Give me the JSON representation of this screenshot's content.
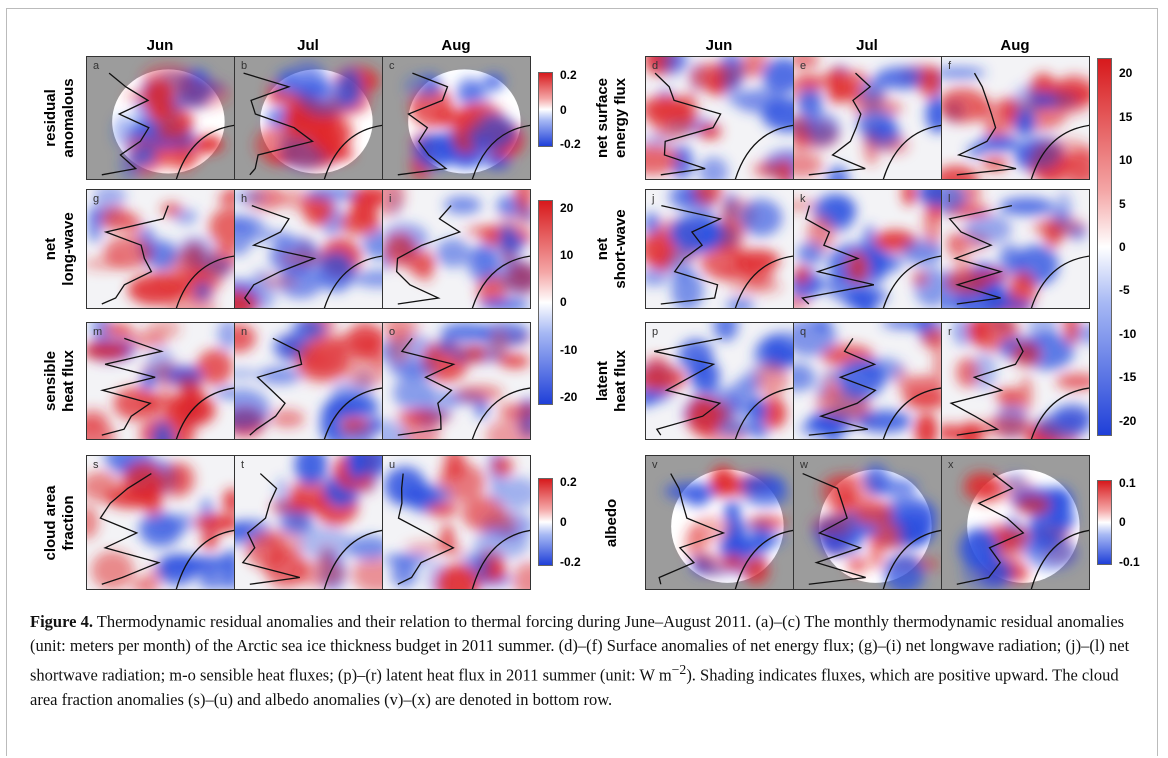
{
  "left": {
    "columns": [
      "Jun",
      "Jul",
      "Aug"
    ],
    "rows": [
      {
        "label_lines": [
          "residual",
          "anomalous"
        ],
        "panels": [
          "a",
          "b",
          "c"
        ]
      },
      {
        "label_lines": [
          "net",
          "long-wave"
        ],
        "panels": [
          "g",
          "h",
          "i"
        ]
      },
      {
        "label_lines": [
          "sensible",
          "heat flux"
        ],
        "panels": [
          "m",
          "n",
          "o"
        ]
      },
      {
        "label_lines": [
          "cloud area",
          "fraction"
        ],
        "panels": [
          "s",
          "t",
          "u"
        ]
      }
    ],
    "colorbars": [
      {
        "ticks": [
          "0.2",
          "0",
          "-0.2"
        ]
      },
      {
        "ticks": [
          "20",
          "10",
          "0",
          "-10",
          "-20"
        ]
      },
      {
        "ticks": [
          "0.2",
          "0",
          "-0.2"
        ]
      }
    ]
  },
  "right": {
    "columns": [
      "Jun",
      "Jul",
      "Aug"
    ],
    "rows": [
      {
        "label_lines": [
          "net surface",
          "energy flux"
        ],
        "panels": [
          "d",
          "e",
          "f"
        ]
      },
      {
        "label_lines": [
          "net",
          "short-wave"
        ],
        "panels": [
          "j",
          "k",
          "l"
        ]
      },
      {
        "label_lines": [
          "latent",
          "heat flux"
        ],
        "panels": [
          "p",
          "q",
          "r"
        ]
      },
      {
        "label_lines": [
          "albedo"
        ],
        "panels": [
          "v",
          "w",
          "x"
        ]
      }
    ],
    "colorbars": [
      {
        "ticks": [
          "20",
          "15",
          "10",
          "5",
          "0",
          "-5",
          "-10",
          "-15",
          "-20"
        ]
      },
      {
        "ticks": [
          "0.1",
          "0",
          "-0.1"
        ]
      }
    ]
  },
  "caption": {
    "label": "Figure 4.",
    "text_before": " Thermodynamic residual anomalies and their relation to thermal forcing during June–August 2011. (a)–(c) The monthly thermodynamic residual anomalies (unit: meters per month) of the Arctic sea ice thickness budget in 2011 summer. (d)–(f) Surface anomalies of net energy flux; (g)–(i) net longwave radiation; (j)–(l) net shortwave radiation; m-o sensible heat fluxes; (p)–(r) latent heat flux in 2011 summer (unit: W m",
    "superscript": "−2",
    "text_after": "). Shading indicates fluxes, which are positive upward. The cloud area fraction anomalies (s)–(u) and albedo anomalies (v)–(x) are denoted in bottom row."
  }
}
